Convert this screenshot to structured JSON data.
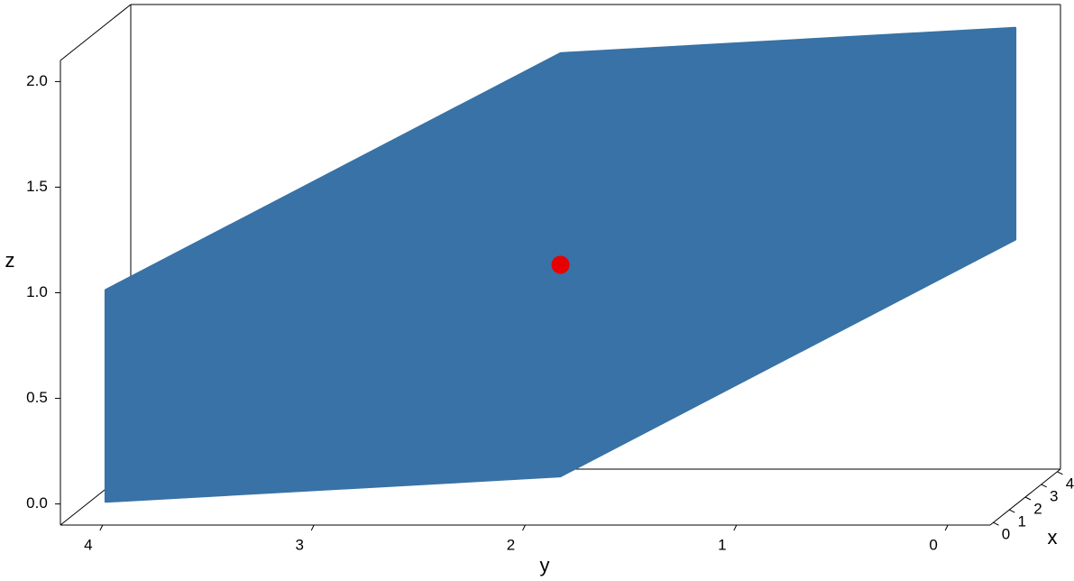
{
  "chart_data": {
    "type": "surface3d",
    "xlabel": "x",
    "ylabel": "y",
    "zlabel": "z",
    "xlim": [
      -0.2,
      4.2
    ],
    "ylim": [
      -0.2,
      4.2
    ],
    "zlim": [
      -0.1,
      2.1
    ],
    "xticks": [
      0,
      1,
      2,
      3,
      4
    ],
    "yticks": [
      0,
      1,
      2,
      3,
      4
    ],
    "zticks": [
      {
        "value": 0,
        "label": "0.0"
      },
      0.5,
      {
        "value": 1,
        "label": "1.0"
      },
      1.5,
      {
        "value": 2,
        "label": "2.0"
      }
    ],
    "y_reversed": true,
    "surface": {
      "color": "#3872a6",
      "x": [
        0,
        0,
        4,
        4,
        4,
        0
      ],
      "y": [
        4,
        4,
        2.15,
        0,
        0,
        1.85
      ],
      "z": [
        0,
        1,
        1.88,
        2,
        1,
        0.12
      ]
    },
    "points": {
      "color": "#e60000",
      "x": [
        2
      ],
      "y": [
        2
      ],
      "z": [
        1
      ]
    }
  }
}
